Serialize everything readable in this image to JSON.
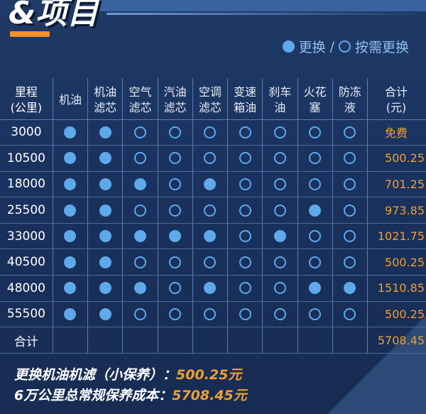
{
  "logo_text": "&项目",
  "legend": {
    "replace": "更换",
    "separator": "/",
    "as_needed": "按需更换"
  },
  "headers": [
    "里程\n(公里)",
    "机油",
    "机油\n滤芯",
    "空气\n滤芯",
    "汽油\n滤芯",
    "空调\n滤芯",
    "变速\n箱油",
    "刹车\n油",
    "火花\n塞",
    "防冻\n液",
    "合计\n(元)"
  ],
  "rows": [
    {
      "mileage": "3000",
      "items": [
        1,
        1,
        0,
        0,
        0,
        0,
        0,
        0,
        0
      ],
      "cost": "免费"
    },
    {
      "mileage": "10500",
      "items": [
        1,
        1,
        0,
        0,
        0,
        0,
        0,
        0,
        0
      ],
      "cost": "500.25"
    },
    {
      "mileage": "18000",
      "items": [
        1,
        1,
        1,
        0,
        1,
        0,
        0,
        0,
        0
      ],
      "cost": "701.25"
    },
    {
      "mileage": "25500",
      "items": [
        1,
        1,
        0,
        0,
        0,
        0,
        0,
        1,
        0
      ],
      "cost": "973.85"
    },
    {
      "mileage": "33000",
      "items": [
        1,
        1,
        1,
        1,
        1,
        0,
        1,
        0,
        0
      ],
      "cost": "1021.75"
    },
    {
      "mileage": "40500",
      "items": [
        1,
        1,
        0,
        0,
        0,
        0,
        0,
        0,
        0
      ],
      "cost": "500.25"
    },
    {
      "mileage": "48000",
      "items": [
        1,
        1,
        1,
        0,
        1,
        0,
        0,
        1,
        1
      ],
      "cost": "1510.85"
    },
    {
      "mileage": "55500",
      "items": [
        1,
        1,
        0,
        0,
        0,
        0,
        0,
        0,
        0
      ],
      "cost": "500.25"
    }
  ],
  "total_row": {
    "label": "合计",
    "cost": "5708.45"
  },
  "summary": {
    "line1_label": "更换机油机滤（小保养）：",
    "line1_value": "500.25元",
    "line2_label": "6万公里总常规保养成本：",
    "line2_value": "5708.45元"
  },
  "colors": {
    "background": "#1a3159",
    "replace_dot": "#5ea9ea",
    "cost": "#f0a030"
  }
}
